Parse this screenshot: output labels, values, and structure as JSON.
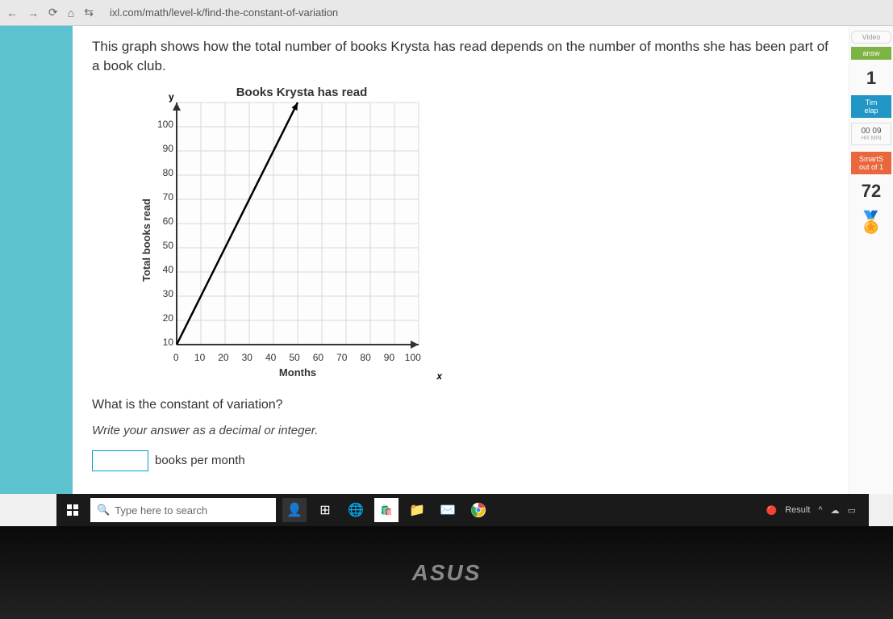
{
  "browser": {
    "url": "ixl.com/math/level-k/find-the-constant-of-variation"
  },
  "problem": {
    "intro": "This graph shows how the total number of books Krysta has read depends on the number of months she has been part of a book club.",
    "question": "What is the constant of variation?",
    "hint": "Write your answer as a decimal or integer.",
    "answer_unit": "books per month"
  },
  "chart": {
    "type": "line",
    "title": "Books Krysta has read",
    "x_label": "Months",
    "y_label": "Total books read",
    "y_axis_letter": "y",
    "x_axis_letter": "x",
    "y_ticks": [
      "100",
      "90",
      "80",
      "70",
      "60",
      "50",
      "40",
      "30",
      "20",
      "10",
      ""
    ],
    "x_ticks": [
      "0",
      "10",
      "20",
      "30",
      "40",
      "50",
      "60",
      "70",
      "80",
      "90",
      "100"
    ],
    "xlim": [
      0,
      100
    ],
    "ylim": [
      0,
      100
    ],
    "tick_step": 10,
    "grid_color": "#d8d8d8",
    "axis_color": "#333333",
    "background_color": "#fdfdfd",
    "line_color": "#000000",
    "line_width": 2.5,
    "points": [
      [
        0,
        0
      ],
      [
        50,
        100
      ]
    ],
    "arrow_end": true
  },
  "right_panel": {
    "video_label": "Video",
    "answered_label": "answ",
    "questions_count": "1",
    "time_label": "Tim",
    "time_label2": "elap",
    "clock_hr": "00",
    "clock_min": "09",
    "clock_sub1": "HR",
    "clock_sub2": "MIN",
    "smart_label": "SmartS",
    "smart_label2": "out of 1",
    "score": "72"
  },
  "taskbar": {
    "search_placeholder": "Type here to search",
    "result_label": "Result"
  },
  "laptop": {
    "brand": "ASUS"
  }
}
